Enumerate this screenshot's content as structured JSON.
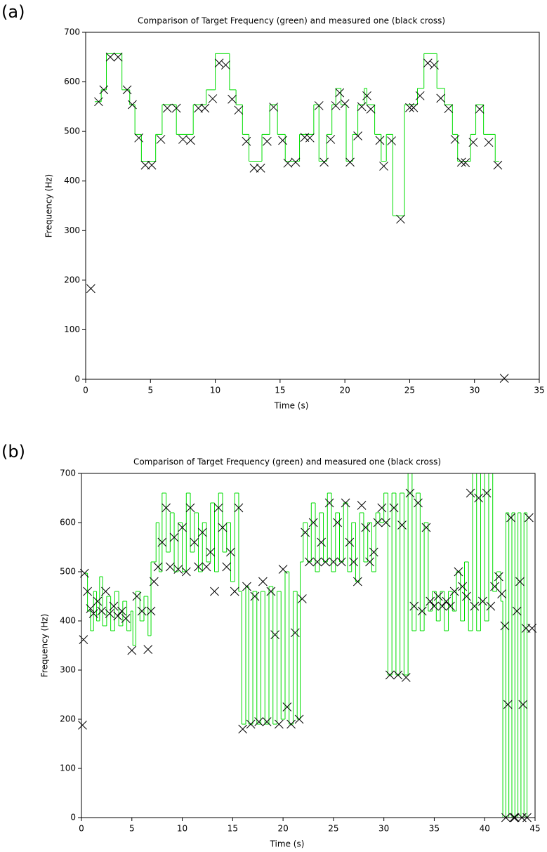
{
  "chart_data": [
    {
      "type": "step",
      "label": "(a)",
      "title": "Comparison of Target Frequency (green) and measured one (black cross)",
      "xlabel": "Time (s)",
      "ylabel": "Frequency (Hz)",
      "xlim": [
        0,
        35
      ],
      "ylim": [
        0,
        700
      ],
      "xticks": [
        0,
        5,
        10,
        15,
        20,
        25,
        30,
        35
      ],
      "yticks": [
        0,
        100,
        200,
        300,
        400,
        500,
        600,
        700
      ],
      "step": {
        "color": "#00dd00",
        "x": [
          0.7,
          1.2,
          1.6,
          2.8,
          3.4,
          3.8,
          4.3,
          5.4,
          5.9,
          7.0,
          8.3,
          9.3,
          10.0,
          11.1,
          11.6,
          12.1,
          12.6,
          13.6,
          14.2,
          14.8,
          15.4,
          16.5,
          17.6,
          18.0,
          18.6,
          19.0,
          19.3,
          19.7,
          20.1,
          20.6,
          21.0,
          21.5,
          21.7,
          22.3,
          22.8,
          23.2,
          23.7,
          24.6,
          25.6,
          26.1,
          27.1,
          27.7,
          28.3,
          28.7,
          29.7,
          30.1,
          30.7,
          31.6,
          31.9
        ],
        "values": [
          560,
          584,
          657,
          584,
          554,
          494,
          440,
          494,
          554,
          494,
          554,
          584,
          657,
          584,
          554,
          494,
          440,
          494,
          554,
          494,
          440,
          494,
          554,
          440,
          494,
          554,
          587,
          554,
          440,
          494,
          554,
          587,
          554,
          494,
          440,
          494,
          330,
          554,
          587,
          657,
          587,
          554,
          494,
          440,
          494,
          554,
          494,
          440,
          440
        ]
      },
      "crosses": {
        "color": "#000000",
        "x": [
          0.4,
          1.0,
          1.4,
          1.9,
          2.5,
          3.2,
          3.6,
          4.1,
          4.6,
          5.1,
          5.8,
          6.3,
          7.0,
          7.5,
          8.1,
          8.7,
          9.2,
          9.8,
          10.3,
          10.8,
          11.3,
          11.8,
          12.4,
          13.0,
          13.5,
          14.0,
          14.5,
          15.2,
          15.6,
          16.2,
          16.9,
          17.3,
          18.0,
          18.4,
          18.9,
          19.3,
          19.6,
          20.0,
          20.4,
          21.0,
          21.3,
          21.7,
          22.0,
          22.7,
          23.0,
          23.6,
          24.3,
          25.0,
          25.3,
          25.8,
          26.4,
          26.9,
          27.4,
          28.0,
          28.5,
          29.0,
          29.3,
          29.9,
          30.4,
          31.1,
          31.8,
          32.3
        ],
        "values": [
          183,
          560,
          584,
          650,
          650,
          584,
          554,
          487,
          432,
          432,
          484,
          547,
          547,
          484,
          482,
          547,
          547,
          566,
          638,
          634,
          565,
          543,
          480,
          426,
          426,
          480,
          549,
          482,
          436,
          438,
          488,
          487,
          552,
          438,
          484,
          552,
          578,
          556,
          438,
          491,
          550,
          572,
          545,
          482,
          430,
          481,
          323,
          548,
          548,
          572,
          638,
          634,
          567,
          546,
          484,
          438,
          437,
          478,
          545,
          478,
          432,
          2
        ]
      }
    },
    {
      "type": "step",
      "label": "(b)",
      "title": "Comparison of Target Frequency (green) and measured one (black cross)",
      "xlabel": "Time (s)",
      "ylabel": "Frequency (Hz)",
      "xlim": [
        0,
        45
      ],
      "ylim": [
        0,
        700
      ],
      "xticks": [
        0,
        5,
        10,
        15,
        20,
        25,
        30,
        35,
        40,
        45
      ],
      "yticks": [
        0,
        100,
        200,
        300,
        400,
        500,
        600,
        700
      ],
      "step": {
        "color": "#00dd00",
        "x": [
          0.3,
          0.6,
          0.9,
          1.2,
          1.5,
          1.8,
          2.1,
          2.5,
          2.9,
          3.3,
          3.7,
          4.1,
          4.5,
          4.9,
          5.1,
          5.4,
          5.8,
          6.2,
          6.6,
          6.9,
          7.4,
          7.7,
          8.0,
          8.4,
          8.8,
          9.2,
          9.6,
          10.0,
          10.4,
          10.8,
          11.2,
          11.6,
          12.0,
          12.4,
          12.8,
          13.2,
          13.6,
          14.0,
          14.4,
          14.8,
          15.2,
          15.6,
          15.9,
          16.3,
          16.6,
          17.0,
          17.4,
          17.8,
          18.2,
          18.6,
          19.0,
          19.4,
          19.8,
          20.2,
          20.6,
          21.0,
          21.4,
          21.7,
          22.0,
          22.4,
          22.8,
          23.2,
          23.6,
          24.0,
          24.4,
          24.8,
          25.2,
          25.6,
          26.0,
          26.4,
          26.8,
          27.2,
          27.6,
          28.0,
          28.4,
          28.8,
          29.2,
          29.6,
          30.0,
          30.4,
          30.8,
          31.2,
          31.6,
          32.0,
          32.4,
          32.8,
          33.2,
          33.6,
          34.0,
          34.4,
          34.8,
          35.2,
          35.6,
          36.0,
          36.4,
          36.8,
          37.2,
          37.6,
          38.0,
          38.4,
          38.8,
          39.2,
          39.6,
          40.0,
          40.4,
          40.8,
          41.2,
          41.6,
          41.8,
          42.1,
          42.4,
          42.7,
          43.0,
          43.3,
          43.6,
          43.9,
          44.2,
          44.4
        ],
        "values": [
          497,
          420,
          380,
          460,
          400,
          490,
          390,
          450,
          380,
          460,
          390,
          440,
          380,
          420,
          350,
          460,
          400,
          450,
          370,
          520,
          600,
          500,
          660,
          540,
          620,
          500,
          600,
          500,
          660,
          540,
          620,
          500,
          600,
          520,
          640,
          500,
          660,
          540,
          600,
          480,
          660,
          460,
          190,
          470,
          190,
          460,
          190,
          460,
          190,
          470,
          190,
          460,
          200,
          500,
          190,
          460,
          200,
          520,
          600,
          520,
          640,
          500,
          620,
          520,
          660,
          500,
          620,
          520,
          640,
          500,
          600,
          480,
          620,
          520,
          600,
          500,
          620,
          600,
          660,
          290,
          660,
          290,
          660,
          290,
          700,
          380,
          660,
          380,
          600,
          420,
          460,
          400,
          460,
          380,
          460,
          420,
          500,
          400,
          520,
          380,
          700,
          380,
          700,
          400,
          700,
          460,
          500,
          440,
          0,
          620,
          0,
          620,
          0,
          620,
          0,
          620,
          0,
          0
        ]
      },
      "crosses": {
        "color": "#000000",
        "x": [
          0.1,
          0.2,
          0.3,
          0.6,
          0.9,
          1.2,
          1.6,
          2.0,
          2.4,
          2.8,
          3.2,
          3.6,
          4.0,
          4.4,
          5.0,
          5.5,
          6.0,
          6.6,
          6.9,
          7.2,
          7.6,
          8.0,
          8.4,
          8.8,
          9.2,
          9.6,
          10.0,
          10.4,
          10.8,
          11.2,
          11.6,
          12.0,
          12.4,
          12.8,
          13.2,
          13.6,
          14.0,
          14.4,
          14.8,
          15.2,
          15.6,
          16.0,
          16.4,
          16.8,
          17.2,
          17.6,
          18.0,
          18.4,
          18.8,
          19.2,
          19.6,
          20.0,
          20.4,
          20.8,
          21.2,
          21.6,
          21.9,
          22.2,
          22.6,
          23.0,
          23.4,
          23.8,
          24.2,
          24.6,
          25.0,
          25.4,
          25.8,
          26.2,
          26.6,
          27.0,
          27.4,
          27.8,
          28.2,
          28.6,
          29.0,
          29.4,
          29.8,
          30.2,
          30.6,
          31.0,
          31.4,
          31.8,
          32.2,
          32.6,
          33.0,
          33.4,
          33.8,
          34.2,
          34.6,
          35.0,
          35.4,
          35.8,
          36.2,
          36.6,
          37.0,
          37.4,
          37.8,
          38.2,
          38.6,
          39.0,
          39.4,
          39.8,
          40.2,
          40.6,
          41.0,
          41.4,
          41.7,
          42.0,
          42.3,
          42.6,
          42.9,
          43.2,
          43.5,
          43.8,
          44.1,
          44.4,
          44.7,
          42.1,
          43.0,
          43.7,
          44.2
        ],
        "values": [
          188,
          362,
          497,
          460,
          425,
          415,
          440,
          420,
          460,
          415,
          430,
          410,
          420,
          405,
          340,
          450,
          420,
          342,
          420,
          480,
          510,
          560,
          630,
          510,
          570,
          505,
          590,
          500,
          630,
          560,
          510,
          580,
          510,
          540,
          460,
          630,
          590,
          510,
          540,
          460,
          630,
          180,
          470,
          190,
          450,
          195,
          480,
          195,
          460,
          372,
          190,
          505,
          225,
          190,
          376,
          200,
          445,
          580,
          520,
          600,
          520,
          560,
          520,
          640,
          520,
          600,
          520,
          640,
          560,
          520,
          480,
          635,
          590,
          520,
          540,
          600,
          630,
          600,
          290,
          630,
          290,
          595,
          285,
          660,
          430,
          640,
          420,
          590,
          440,
          430,
          450,
          430,
          440,
          430,
          460,
          500,
          470,
          450,
          660,
          430,
          650,
          440,
          660,
          430,
          470,
          490,
          455,
          390,
          230,
          610,
          0,
          420,
          480,
          230,
          385,
          610,
          385,
          0,
          0,
          0,
          0
        ]
      }
    }
  ]
}
